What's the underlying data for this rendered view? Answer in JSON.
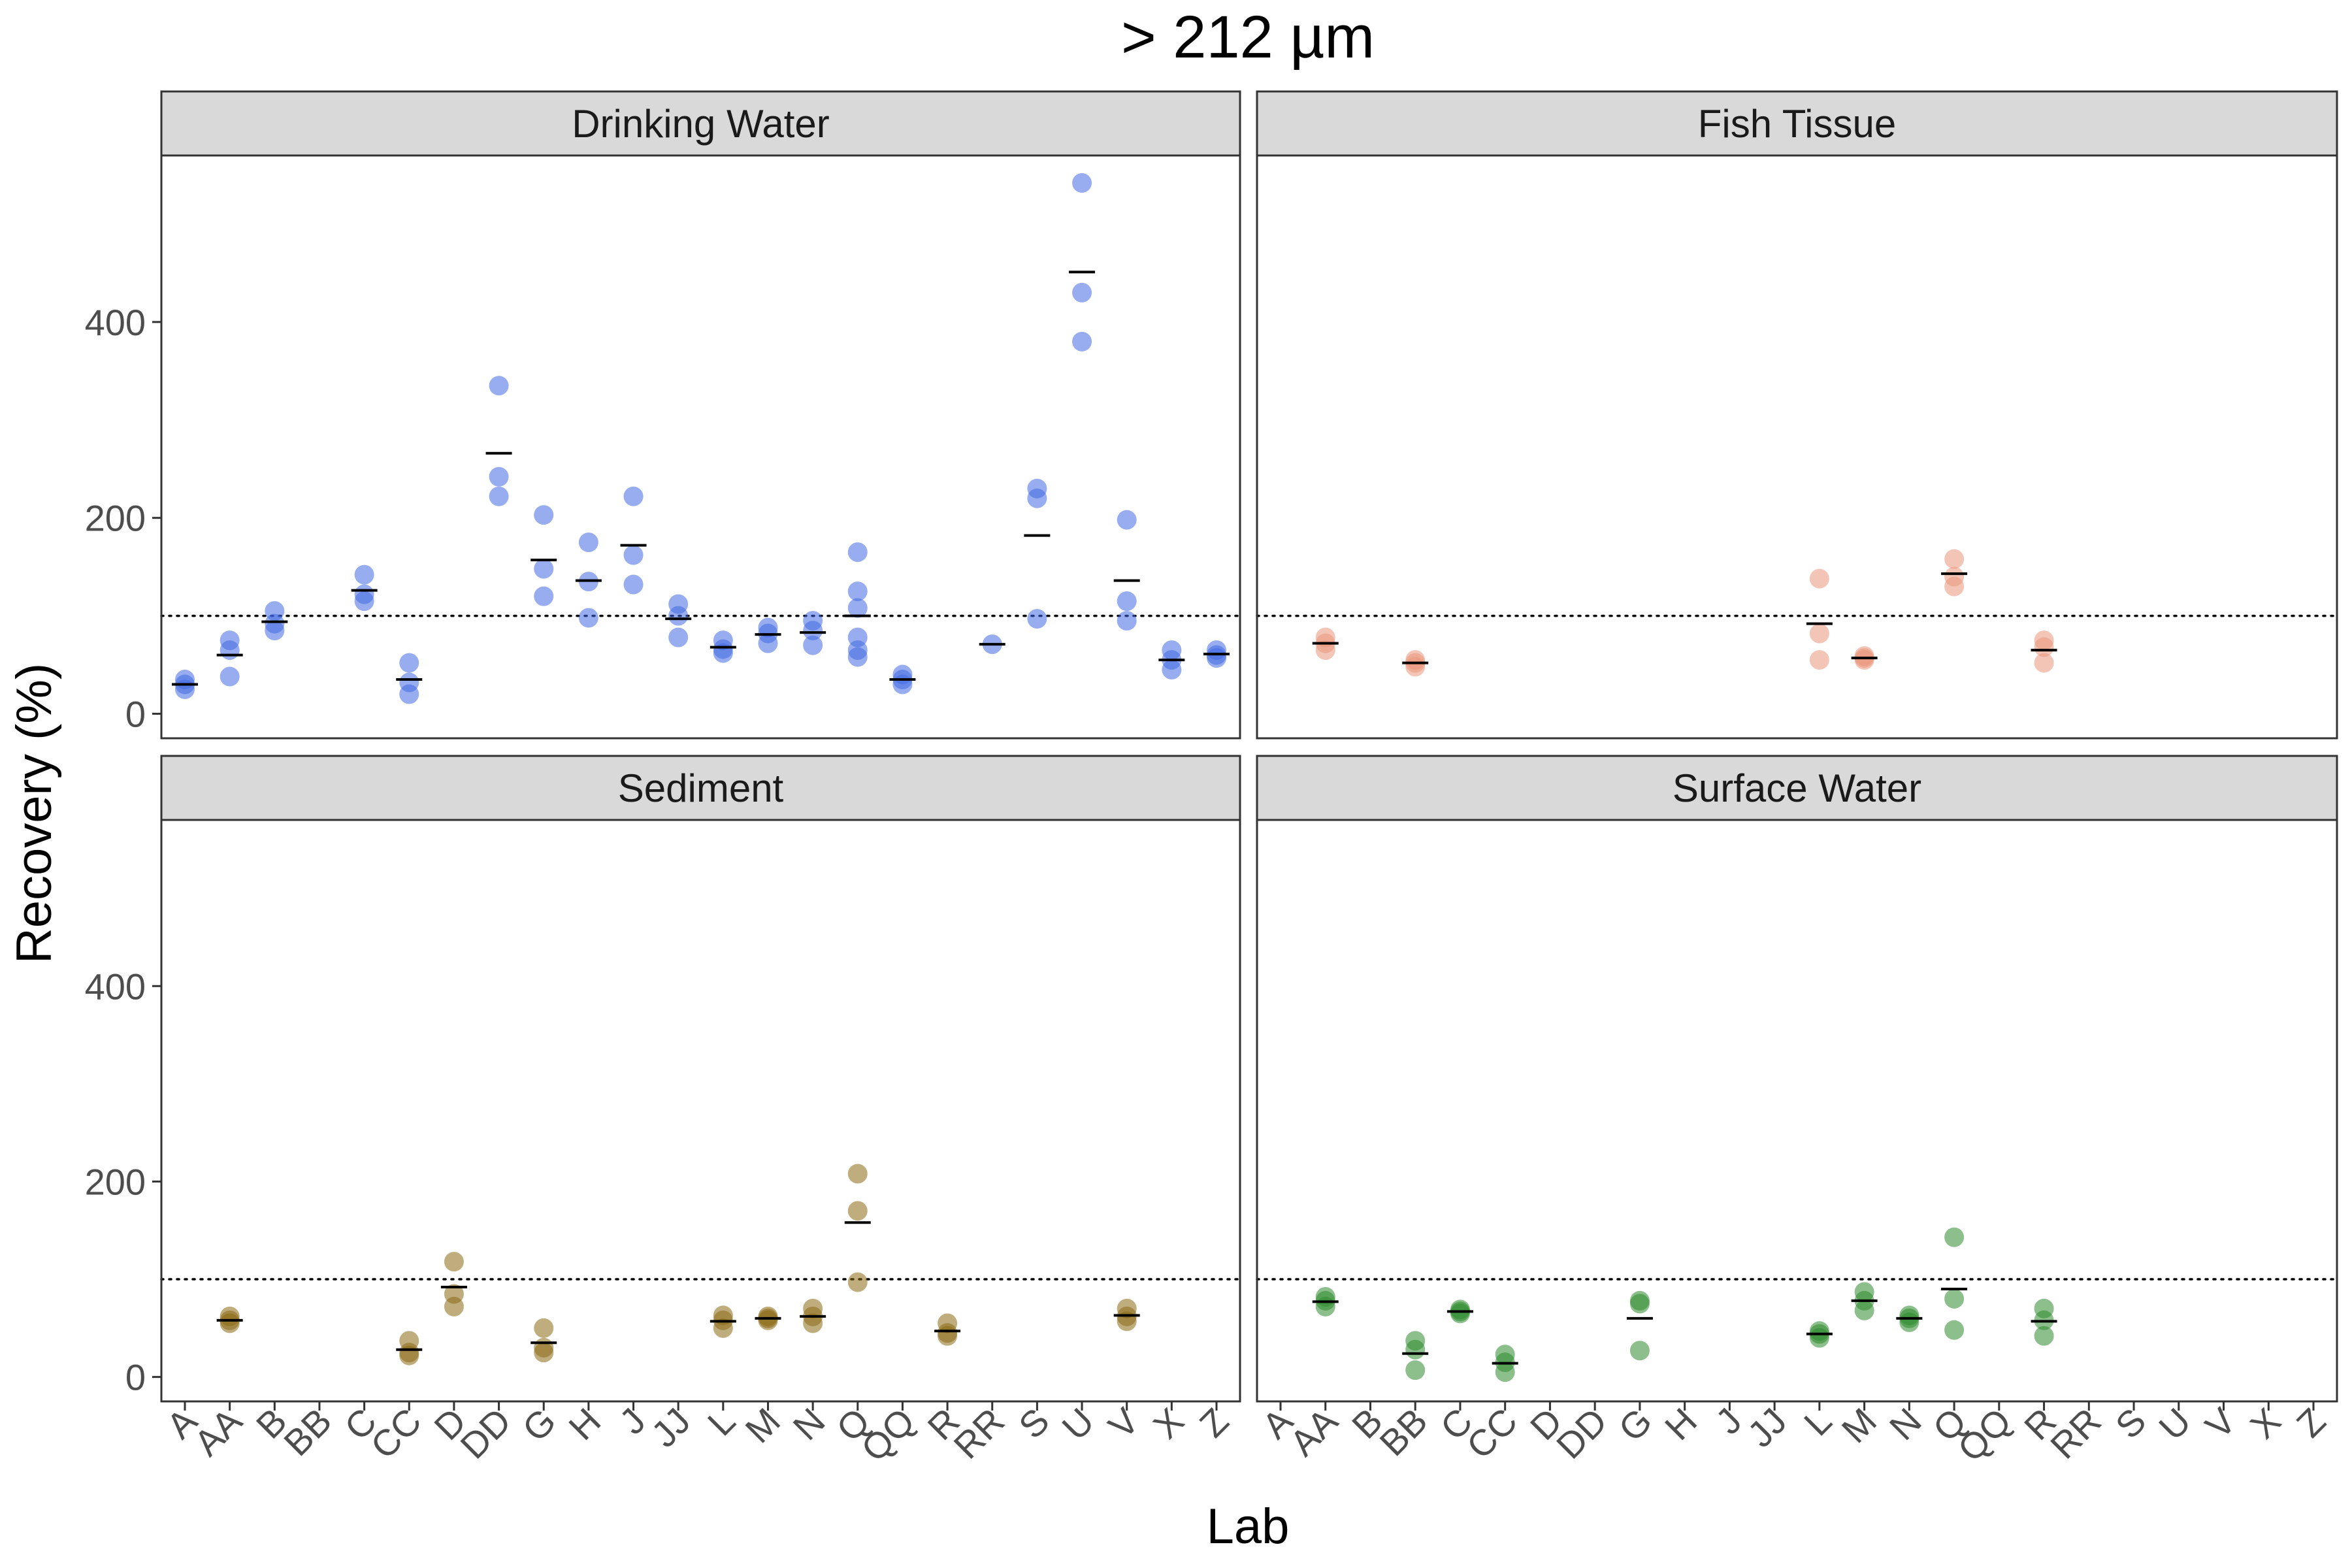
{
  "chart_data": {
    "type": "scatter",
    "title": "> 212 µm",
    "xlabel": "Lab",
    "ylabel": "Recovery (%)",
    "ylim": [
      -25,
      570
    ],
    "yticks": [
      0,
      200,
      400
    ],
    "reference_line": 100,
    "categories": [
      "A",
      "AA",
      "B",
      "BB",
      "C",
      "CC",
      "D",
      "DD",
      "G",
      "H",
      "J",
      "JJ",
      "L",
      "M",
      "N",
      "Q",
      "QQ",
      "R",
      "RR",
      "S",
      "U",
      "V",
      "X",
      "Z"
    ],
    "facet_layout": "2x2",
    "panels": [
      {
        "name": "Drinking Water",
        "color": "#4169E1",
        "points": [
          [
            "A",
            25
          ],
          [
            "A",
            30
          ],
          [
            "A",
            35
          ],
          [
            "AA",
            38
          ],
          [
            "AA",
            65
          ],
          [
            "AA",
            75
          ],
          [
            "B",
            85
          ],
          [
            "B",
            92
          ],
          [
            "B",
            105
          ],
          [
            "C",
            115
          ],
          [
            "C",
            122
          ],
          [
            "C",
            142
          ],
          [
            "CC",
            20
          ],
          [
            "CC",
            32
          ],
          [
            "CC",
            52
          ],
          [
            "DD",
            222
          ],
          [
            "DD",
            242
          ],
          [
            "DD",
            335
          ],
          [
            "G",
            120
          ],
          [
            "G",
            148
          ],
          [
            "G",
            203
          ],
          [
            "H",
            98
          ],
          [
            "H",
            135
          ],
          [
            "H",
            175
          ],
          [
            "J",
            132
          ],
          [
            "J",
            162
          ],
          [
            "J",
            222
          ],
          [
            "JJ",
            78
          ],
          [
            "JJ",
            100
          ],
          [
            "JJ",
            112
          ],
          [
            "L",
            62
          ],
          [
            "L",
            66
          ],
          [
            "L",
            75
          ],
          [
            "M",
            72
          ],
          [
            "M",
            82
          ],
          [
            "M",
            88
          ],
          [
            "N",
            70
          ],
          [
            "N",
            85
          ],
          [
            "N",
            95
          ],
          [
            "Q",
            58
          ],
          [
            "Q",
            65
          ],
          [
            "Q",
            78
          ],
          [
            "Q",
            108
          ],
          [
            "Q",
            125
          ],
          [
            "Q",
            165
          ],
          [
            "QQ",
            30
          ],
          [
            "QQ",
            35
          ],
          [
            "QQ",
            40
          ],
          [
            "RR",
            71
          ],
          [
            "S",
            97
          ],
          [
            "S",
            220
          ],
          [
            "S",
            230
          ],
          [
            "U",
            380
          ],
          [
            "U",
            430
          ],
          [
            "U",
            542
          ],
          [
            "V",
            95
          ],
          [
            "V",
            115
          ],
          [
            "V",
            198
          ],
          [
            "X",
            45
          ],
          [
            "X",
            55
          ],
          [
            "X",
            65
          ],
          [
            "Z",
            57
          ],
          [
            "Z",
            60
          ],
          [
            "Z",
            65
          ]
        ],
        "means": [
          [
            "A",
            30
          ],
          [
            "AA",
            60
          ],
          [
            "B",
            94
          ],
          [
            "C",
            126
          ],
          [
            "CC",
            35
          ],
          [
            "DD",
            266
          ],
          [
            "G",
            157
          ],
          [
            "H",
            136
          ],
          [
            "J",
            172
          ],
          [
            "JJ",
            97
          ],
          [
            "L",
            68
          ],
          [
            "M",
            81
          ],
          [
            "N",
            83
          ],
          [
            "Q",
            100
          ],
          [
            "QQ",
            35
          ],
          [
            "RR",
            71
          ],
          [
            "S",
            182
          ],
          [
            "U",
            451
          ],
          [
            "V",
            136
          ],
          [
            "X",
            55
          ],
          [
            "Z",
            61
          ]
        ]
      },
      {
        "name": "Fish Tissue",
        "color": "#E9967A",
        "points": [
          [
            "AA",
            65
          ],
          [
            "AA",
            72
          ],
          [
            "AA",
            78
          ],
          [
            "BB",
            48
          ],
          [
            "BB",
            52
          ],
          [
            "BB",
            55
          ],
          [
            "L",
            55
          ],
          [
            "L",
            82
          ],
          [
            "L",
            138
          ],
          [
            "M",
            55
          ],
          [
            "M",
            57
          ],
          [
            "M",
            59
          ],
          [
            "Q",
            130
          ],
          [
            "Q",
            140
          ],
          [
            "Q",
            158
          ],
          [
            "R",
            52
          ],
          [
            "R",
            68
          ],
          [
            "R",
            75
          ]
        ],
        "means": [
          [
            "AA",
            72
          ],
          [
            "BB",
            52
          ],
          [
            "L",
            92
          ],
          [
            "M",
            57
          ],
          [
            "Q",
            143
          ],
          [
            "R",
            65
          ]
        ]
      },
      {
        "name": "Sediment",
        "color": "#8B6914",
        "points": [
          [
            "AA",
            55
          ],
          [
            "AA",
            58
          ],
          [
            "AA",
            62
          ],
          [
            "CC",
            22
          ],
          [
            "CC",
            25
          ],
          [
            "CC",
            37
          ],
          [
            "D",
            72
          ],
          [
            "D",
            85
          ],
          [
            "D",
            118
          ],
          [
            "G",
            25
          ],
          [
            "G",
            30
          ],
          [
            "G",
            50
          ],
          [
            "L",
            50
          ],
          [
            "L",
            58
          ],
          [
            "L",
            63
          ],
          [
            "M",
            58
          ],
          [
            "M",
            60
          ],
          [
            "M",
            62
          ],
          [
            "N",
            55
          ],
          [
            "N",
            62
          ],
          [
            "N",
            70
          ],
          [
            "Q",
            97
          ],
          [
            "Q",
            170
          ],
          [
            "Q",
            208
          ],
          [
            "R",
            42
          ],
          [
            "R",
            45
          ],
          [
            "R",
            55
          ],
          [
            "V",
            57
          ],
          [
            "V",
            62
          ],
          [
            "V",
            70
          ]
        ],
        "means": [
          [
            "AA",
            58
          ],
          [
            "CC",
            28
          ],
          [
            "D",
            92
          ],
          [
            "G",
            35
          ],
          [
            "L",
            57
          ],
          [
            "M",
            60
          ],
          [
            "N",
            62
          ],
          [
            "Q",
            158
          ],
          [
            "R",
            47
          ],
          [
            "V",
            63
          ]
        ]
      },
      {
        "name": "Surface Water",
        "color": "#2E8B2E",
        "points": [
          [
            "AA",
            72
          ],
          [
            "AA",
            78
          ],
          [
            "AA",
            82
          ],
          [
            "BB",
            7
          ],
          [
            "BB",
            28
          ],
          [
            "BB",
            37
          ],
          [
            "C",
            65
          ],
          [
            "C",
            67
          ],
          [
            "C",
            69
          ],
          [
            "CC",
            5
          ],
          [
            "CC",
            15
          ],
          [
            "CC",
            23
          ],
          [
            "G",
            27
          ],
          [
            "G",
            75
          ],
          [
            "G",
            78
          ],
          [
            "L",
            40
          ],
          [
            "L",
            44
          ],
          [
            "L",
            47
          ],
          [
            "M",
            68
          ],
          [
            "M",
            78
          ],
          [
            "M",
            87
          ],
          [
            "N",
            56
          ],
          [
            "N",
            60
          ],
          [
            "N",
            63
          ],
          [
            "Q",
            48
          ],
          [
            "Q",
            80
          ],
          [
            "Q",
            143
          ],
          [
            "R",
            42
          ],
          [
            "R",
            58
          ],
          [
            "R",
            70
          ]
        ],
        "means": [
          [
            "AA",
            77
          ],
          [
            "BB",
            24
          ],
          [
            "C",
            67
          ],
          [
            "CC",
            14
          ],
          [
            "G",
            60
          ],
          [
            "L",
            44
          ],
          [
            "M",
            78
          ],
          [
            "N",
            60
          ],
          [
            "Q",
            90
          ],
          [
            "R",
            57
          ]
        ]
      }
    ]
  }
}
